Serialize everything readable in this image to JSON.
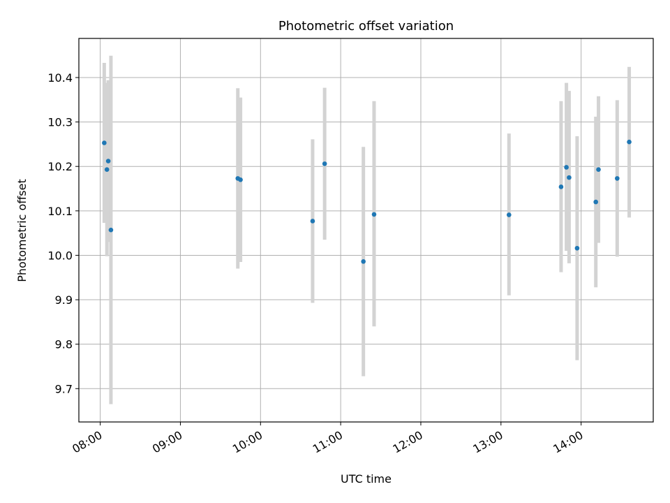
{
  "chart_data": {
    "type": "scatter",
    "title": "Photometric offset variation",
    "xlabel": "UTC time",
    "ylabel": "Photometric offset",
    "xlim": [
      "07:44",
      "14:54"
    ],
    "ylim": [
      9.625,
      10.488
    ],
    "grid": true,
    "x_ticks": [
      "08:00",
      "09:00",
      "10:00",
      "11:00",
      "12:00",
      "13:00",
      "14:00"
    ],
    "y_ticks": [
      "9.7",
      "9.8",
      "9.9",
      "10.0",
      "10.1",
      "10.2",
      "10.3",
      "10.4"
    ],
    "errorbar_color": "#d3d3d3",
    "point_color": "#1f77b4",
    "points": [
      {
        "time": "08:03",
        "y": 10.253,
        "ylow": 10.073,
        "yhigh": 10.433
      },
      {
        "time": "08:05",
        "y": 10.193,
        "ylow": 9.998,
        "yhigh": 10.388
      },
      {
        "time": "08:06",
        "y": 10.212,
        "ylow": 10.03,
        "yhigh": 10.394
      },
      {
        "time": "08:08",
        "y": 10.057,
        "ylow": 9.665,
        "yhigh": 10.449
      },
      {
        "time": "09:43",
        "y": 10.173,
        "ylow": 9.97,
        "yhigh": 10.376
      },
      {
        "time": "09:45",
        "y": 10.17,
        "ylow": 9.985,
        "yhigh": 10.355
      },
      {
        "time": "10:39",
        "y": 10.077,
        "ylow": 9.893,
        "yhigh": 10.261
      },
      {
        "time": "10:48",
        "y": 10.206,
        "ylow": 10.035,
        "yhigh": 10.377
      },
      {
        "time": "11:17",
        "y": 9.986,
        "ylow": 9.728,
        "yhigh": 10.244
      },
      {
        "time": "11:25",
        "y": 10.092,
        "ylow": 9.84,
        "yhigh": 10.347
      },
      {
        "time": "13:06",
        "y": 10.091,
        "ylow": 9.91,
        "yhigh": 10.274
      },
      {
        "time": "13:45",
        "y": 10.154,
        "ylow": 9.962,
        "yhigh": 10.347
      },
      {
        "time": "13:49",
        "y": 10.198,
        "ylow": 10.01,
        "yhigh": 10.388
      },
      {
        "time": "13:51",
        "y": 10.175,
        "ylow": 9.982,
        "yhigh": 10.37
      },
      {
        "time": "13:57",
        "y": 10.016,
        "ylow": 9.764,
        "yhigh": 10.268
      },
      {
        "time": "14:11",
        "y": 10.12,
        "ylow": 9.928,
        "yhigh": 10.312
      },
      {
        "time": "14:13",
        "y": 10.193,
        "ylow": 10.028,
        "yhigh": 10.358
      },
      {
        "time": "14:27",
        "y": 10.173,
        "ylow": 9.997,
        "yhigh": 10.349
      },
      {
        "time": "14:36",
        "y": 10.255,
        "ylow": 10.085,
        "yhigh": 10.424
      }
    ]
  }
}
